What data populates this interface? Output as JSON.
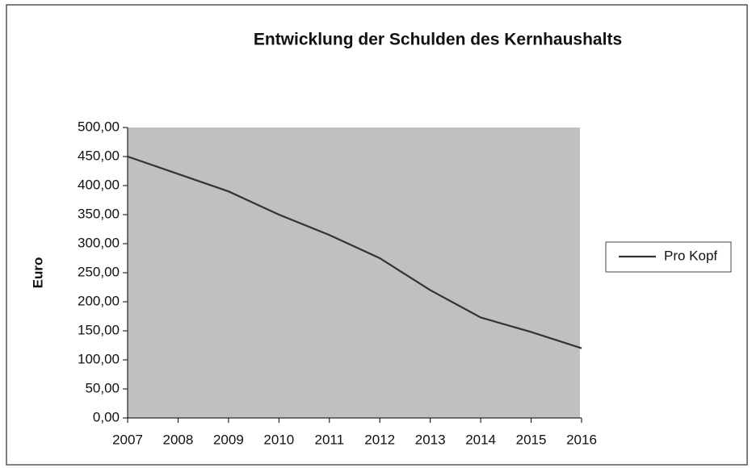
{
  "chart_data": {
    "type": "line",
    "title": "Entwicklung der Schulden des Kernhaushalts",
    "y_label": "Euro",
    "categories": [
      "2007",
      "2008",
      "2009",
      "2010",
      "2011",
      "2012",
      "2013",
      "2014",
      "2015",
      "2016"
    ],
    "series": [
      {
        "name": "Pro Kopf",
        "color": "#333333",
        "values": [
          450,
          420,
          390,
          350,
          315,
          275,
          220,
          173,
          148,
          120
        ]
      }
    ],
    "ylim": [
      0,
      500
    ],
    "yticks": [
      {
        "value": 0,
        "label": "0,00"
      },
      {
        "value": 50,
        "label": "50,00"
      },
      {
        "value": 100,
        "label": "100,00"
      },
      {
        "value": 150,
        "label": "150,00"
      },
      {
        "value": 200,
        "label": "200,00"
      },
      {
        "value": 250,
        "label": "250,00"
      },
      {
        "value": 300,
        "label": "300,00"
      },
      {
        "value": 350,
        "label": "350,00"
      },
      {
        "value": 400,
        "label": "400,00"
      },
      {
        "value": 450,
        "label": "450,00"
      },
      {
        "value": 500,
        "label": "500,00"
      }
    ],
    "grid": false,
    "legend": "right",
    "plot_background": "#c0c0c0"
  }
}
